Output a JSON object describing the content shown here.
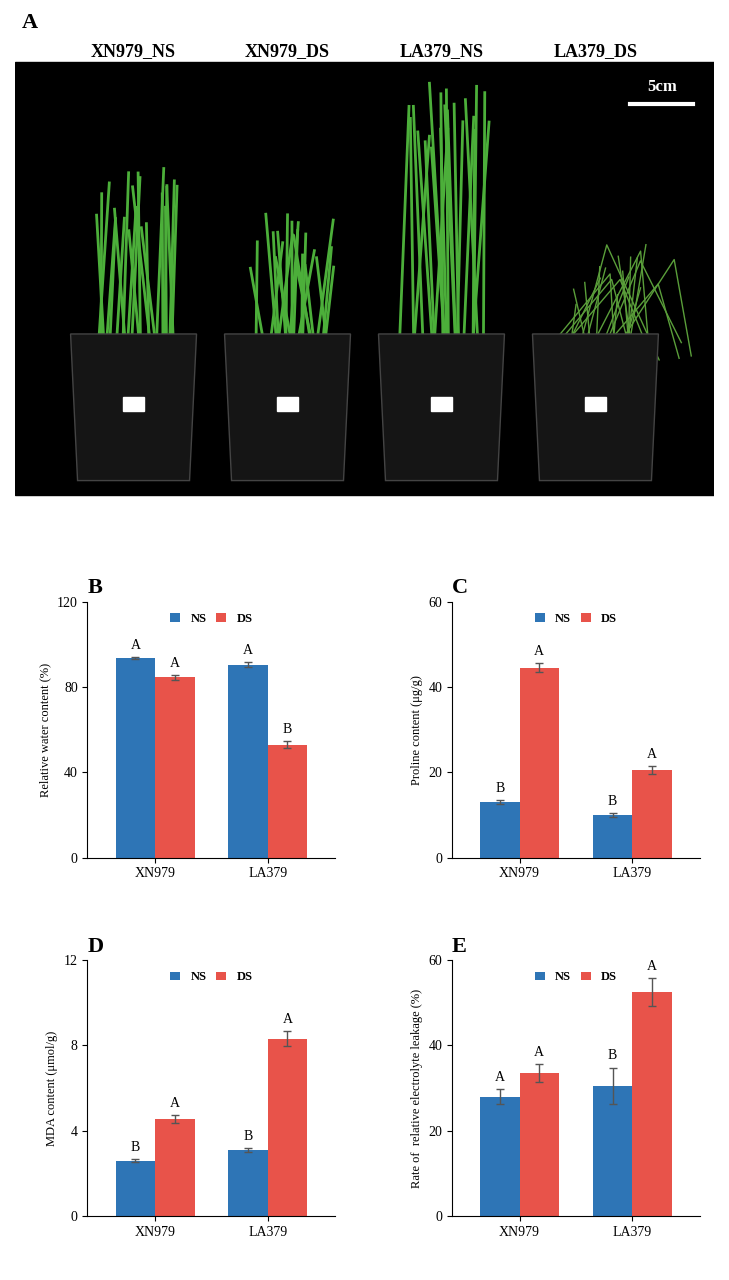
{
  "photo": {
    "title": "A",
    "labels": [
      "XN979_NS",
      "XN979_DS",
      "LA379_NS",
      "LA379_DS"
    ],
    "scale_label": "5cm"
  },
  "chart_data": [
    {
      "type": "bar",
      "title": "B",
      "ylabel": "Relative water content (%)",
      "categories": [
        "XN979",
        "LA379"
      ],
      "ylim": [
        0,
        120
      ],
      "yticks": [
        0,
        40,
        80,
        120
      ],
      "legend": "upper center",
      "series": [
        {
          "name": "NS",
          "color": "#2e75b6",
          "values": [
            93.5,
            90.5
          ],
          "errors": [
            0.5,
            1.0
          ],
          "letters": [
            "A",
            "A"
          ]
        },
        {
          "name": "DS",
          "color": "#e8534a",
          "values": [
            84.5,
            53.0
          ],
          "errors": [
            1.2,
            1.8
          ],
          "letters": [
            "A",
            "B"
          ]
        }
      ]
    },
    {
      "type": "bar",
      "title": "C",
      "ylabel": "Proline content (μg/g)",
      "categories": [
        "XN979",
        "LA379"
      ],
      "ylim": [
        0,
        60
      ],
      "yticks": [
        0,
        20,
        40,
        60
      ],
      "legend": "upper center",
      "series": [
        {
          "name": "NS",
          "color": "#2e75b6",
          "values": [
            13.0,
            10.0
          ],
          "errors": [
            0.5,
            0.4
          ],
          "letters": [
            "B",
            "B"
          ]
        },
        {
          "name": "DS",
          "color": "#e8534a",
          "values": [
            44.5,
            20.5
          ],
          "errors": [
            1.0,
            1.0
          ],
          "letters": [
            "A",
            "A"
          ]
        }
      ]
    },
    {
      "type": "bar",
      "title": "D",
      "ylabel": "MDA content (μmol/g)",
      "categories": [
        "XN979",
        "LA379"
      ],
      "ylim": [
        0,
        12
      ],
      "yticks": [
        0,
        4,
        8,
        12
      ],
      "legend": "upper center",
      "series": [
        {
          "name": "NS",
          "color": "#2e75b6",
          "values": [
            2.6,
            3.1
          ],
          "errors": [
            0.05,
            0.1
          ],
          "letters": [
            "B",
            "B"
          ]
        },
        {
          "name": "DS",
          "color": "#e8534a",
          "values": [
            4.55,
            8.3
          ],
          "errors": [
            0.2,
            0.35
          ],
          "letters": [
            "A",
            "A"
          ]
        }
      ]
    },
    {
      "type": "bar",
      "title": "E",
      "ylabel": "Rate of  relative electrolyte leakage (%)",
      "categories": [
        "XN979",
        "LA379"
      ],
      "ylim": [
        0,
        60
      ],
      "yticks": [
        0,
        20,
        40,
        60
      ],
      "legend": "upper center",
      "series": [
        {
          "name": "NS",
          "color": "#2e75b6",
          "values": [
            28.0,
            30.5
          ],
          "errors": [
            1.8,
            4.3
          ],
          "letters": [
            "A",
            "B"
          ]
        },
        {
          "name": "DS",
          "color": "#e8534a",
          "values": [
            33.5,
            52.5
          ],
          "errors": [
            2.2,
            3.2
          ],
          "letters": [
            "A",
            "A"
          ]
        }
      ]
    }
  ]
}
